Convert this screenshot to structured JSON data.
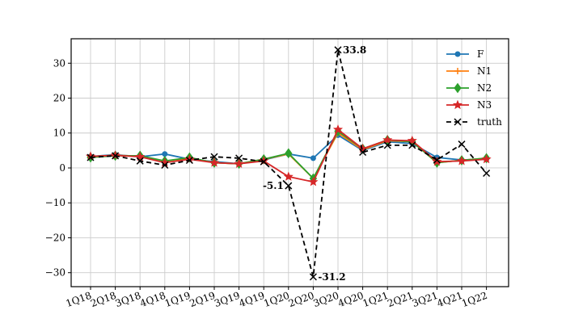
{
  "chart_data": {
    "type": "line",
    "categories": [
      "1Q18",
      "2Q18",
      "3Q18",
      "4Q18",
      "1Q19",
      "2Q19",
      "3Q19",
      "4Q19",
      "1Q20",
      "2Q20",
      "3Q20",
      "4Q20",
      "1Q21",
      "2Q21",
      "3Q21",
      "4Q21",
      "1Q22"
    ],
    "ylim": [
      -34,
      37
    ],
    "yticks": [
      -30,
      -20,
      -10,
      0,
      10,
      20,
      30
    ],
    "ytick_labels": [
      "−30",
      "−20",
      "−10",
      "0",
      "10",
      "20",
      "30"
    ],
    "grid": true,
    "legend_position": "top-right",
    "series": [
      {
        "name": "F",
        "color": "#1f77b4",
        "marker": "circle",
        "dash": "solid",
        "values": [
          3.3,
          3.8,
          3.2,
          4.0,
          2.5,
          1.8,
          1.2,
          2.3,
          4.0,
          2.8,
          9.4,
          5.0,
          7.5,
          7.0,
          3.0,
          2.3,
          2.5
        ]
      },
      {
        "name": "N1",
        "color": "#ff7f0e",
        "marker": "plus",
        "dash": "solid",
        "values": [
          3.3,
          3.6,
          3.4,
          2.0,
          2.8,
          1.5,
          1.2,
          2.5,
          4.0,
          -3.0,
          10.0,
          5.2,
          7.8,
          7.5,
          1.5,
          2.2,
          2.8
        ]
      },
      {
        "name": "N2",
        "color": "#2ca02c",
        "marker": "diamond",
        "dash": "solid",
        "values": [
          3.0,
          3.5,
          3.5,
          2.0,
          3.0,
          1.5,
          1.2,
          2.5,
          4.2,
          -3.0,
          10.5,
          5.5,
          8.0,
          7.5,
          1.5,
          2.2,
          2.8
        ]
      },
      {
        "name": "N3",
        "color": "#d62728",
        "marker": "star",
        "dash": "solid",
        "values": [
          3.3,
          3.6,
          3.2,
          1.5,
          2.5,
          1.5,
          1.2,
          2.0,
          -2.5,
          -4.0,
          11.0,
          5.5,
          8.0,
          7.8,
          1.8,
          2.0,
          2.5
        ]
      },
      {
        "name": "truth",
        "color": "#000000",
        "marker": "x",
        "dash": "dashed",
        "values": [
          3.0,
          3.5,
          2.0,
          0.8,
          2.2,
          3.2,
          2.8,
          1.8,
          -5.1,
          -31.2,
          33.8,
          4.5,
          6.5,
          6.5,
          2.3,
          6.8,
          -1.5
        ]
      }
    ],
    "annotations": [
      {
        "text": "33.8",
        "category": "3Q20",
        "value": 33.8,
        "anchor": "right"
      },
      {
        "text": "-31.2",
        "category": "2Q20",
        "value": -31.2,
        "anchor": "right"
      },
      {
        "text": "-5.1",
        "category": "1Q20",
        "value": -5.1,
        "anchor": "left"
      }
    ]
  }
}
